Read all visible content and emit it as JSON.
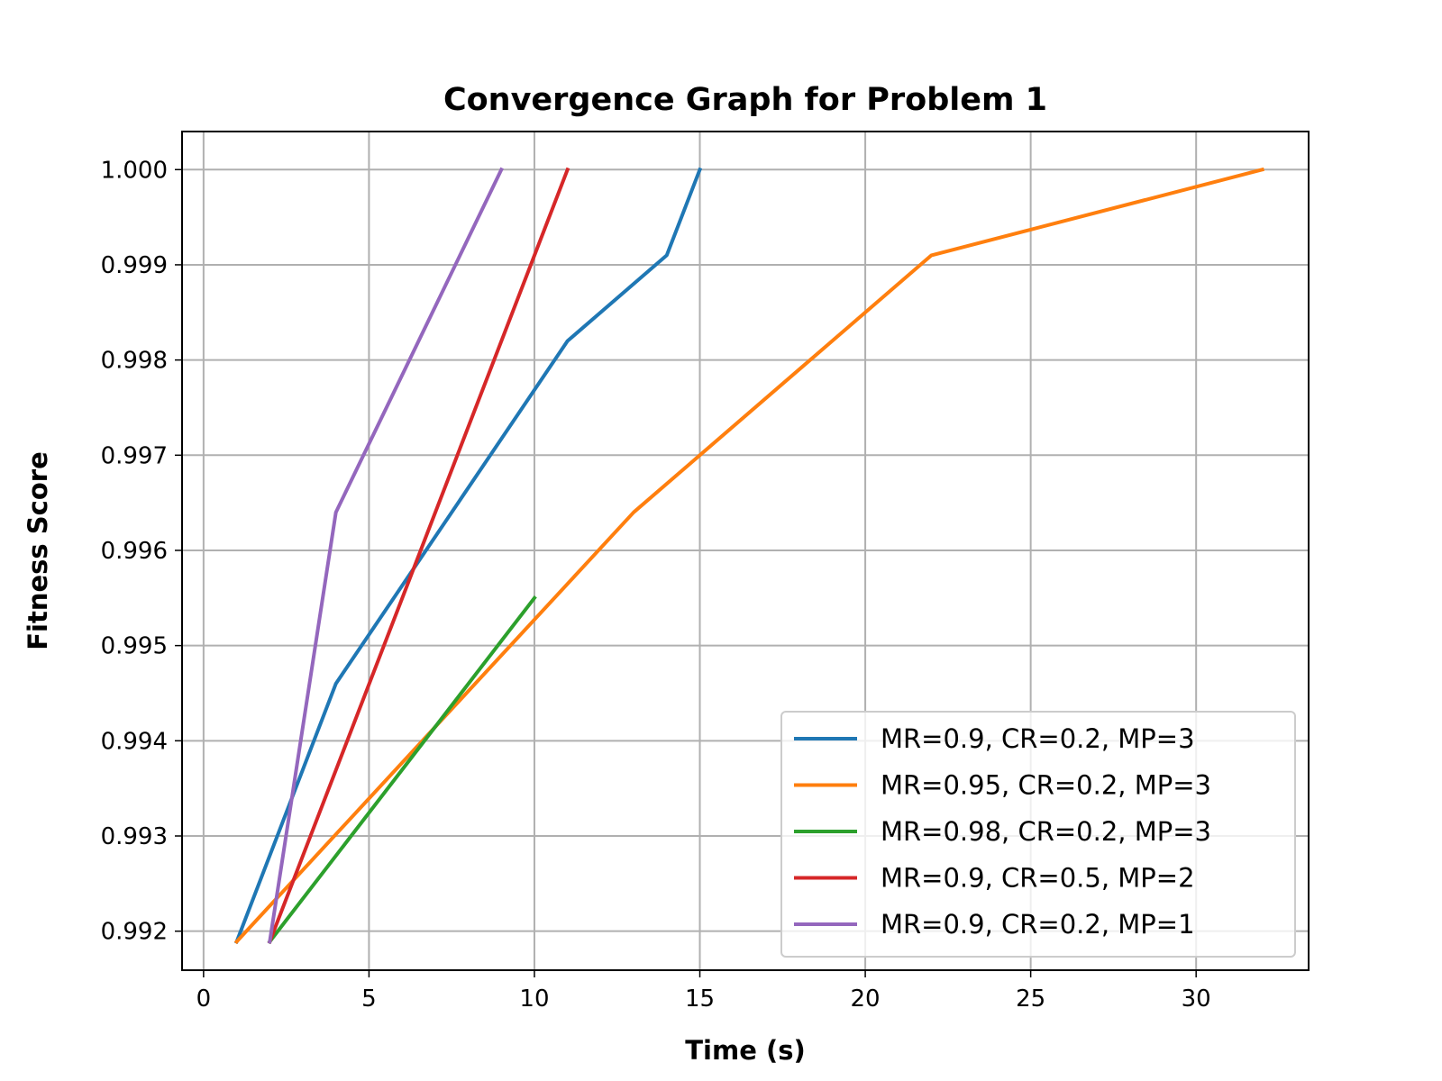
{
  "chart_data": {
    "type": "line",
    "title": "Convergence Graph for Problem 1",
    "xlabel": "Time (s)",
    "ylabel": "Fitness Score",
    "xlim": [
      -0.65,
      33.4
    ],
    "ylim": [
      0.99159,
      1.0004
    ],
    "xticks": [
      0,
      5,
      10,
      15,
      20,
      25,
      30
    ],
    "xtick_labels": [
      "0",
      "5",
      "10",
      "15",
      "20",
      "25",
      "30"
    ],
    "yticks": [
      0.992,
      0.993,
      0.994,
      0.995,
      0.996,
      0.997,
      0.998,
      0.999,
      1.0
    ],
    "ytick_labels": [
      "0.992",
      "0.993",
      "0.994",
      "0.995",
      "0.996",
      "0.997",
      "0.998",
      "0.999",
      "1.000"
    ],
    "grid": true,
    "legend_position": "lower-right",
    "series": [
      {
        "name": "MR=0.9, CR=0.2, MP=3",
        "color": "#1f77b4",
        "x": [
          1,
          4,
          11,
          14,
          15
        ],
        "y": [
          0.99189,
          0.9946,
          0.9982,
          0.9991,
          1.0
        ]
      },
      {
        "name": "MR=0.95, CR=0.2, MP=3",
        "color": "#ff7f0e",
        "x": [
          1,
          13,
          22,
          32
        ],
        "y": [
          0.99189,
          0.9964,
          0.9991,
          1.0
        ]
      },
      {
        "name": "MR=0.98, CR=0.2, MP=3",
        "color": "#2ca02c",
        "x": [
          2,
          10
        ],
        "y": [
          0.99189,
          0.9955
        ]
      },
      {
        "name": "MR=0.9, CR=0.5, MP=2",
        "color": "#d62728",
        "x": [
          2,
          11
        ],
        "y": [
          0.99189,
          1.0
        ]
      },
      {
        "name": "MR=0.9, CR=0.2, MP=1",
        "color": "#9467bd",
        "x": [
          2,
          4,
          9
        ],
        "y": [
          0.99189,
          0.9964,
          1.0
        ]
      }
    ]
  }
}
